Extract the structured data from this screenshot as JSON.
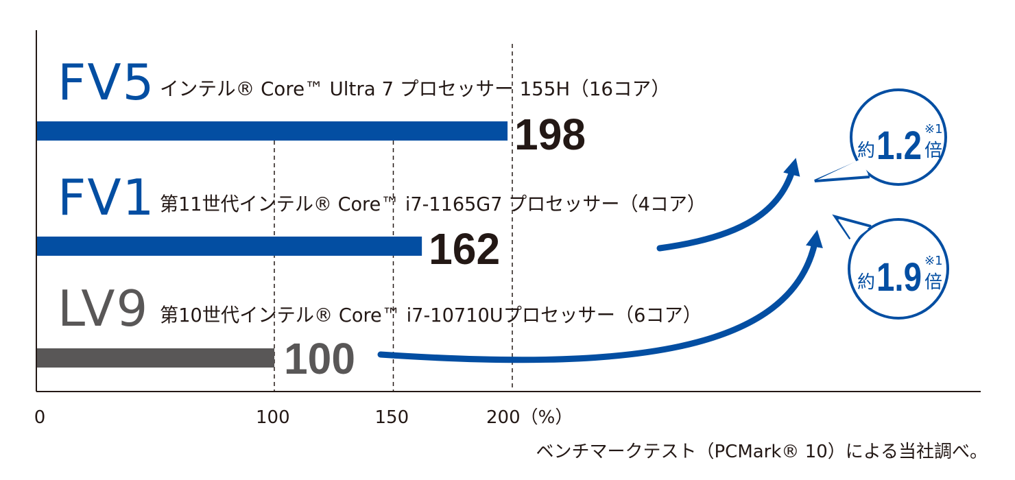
{
  "chart_data": {
    "type": "bar",
    "orientation": "horizontal",
    "categories": [
      "FV5",
      "FV1",
      "LV9"
    ],
    "values": [
      198,
      162,
      100
    ],
    "descriptions": [
      "インテル® Core™ Ultra 7 プロセッサー 155H（16コア）",
      "第11世代インテル® Core™ i7-1165G7 プロセッサー（4コア）",
      "第10世代インテル® Core™ i7-10710Uプロセッサー（6コア）"
    ],
    "value_labels": [
      "198",
      "162",
      "100"
    ],
    "bar_colors": [
      "#034ea2",
      "#034ea2",
      "#595757"
    ],
    "name_colors": [
      "#034ea2",
      "#034ea2",
      "#595757"
    ],
    "xlim": [
      0,
      240
    ],
    "xticks": [
      0,
      100,
      150,
      200
    ],
    "xtick_labels": [
      "0",
      "100",
      "150",
      "200（%）"
    ],
    "gridlines": [
      100,
      150,
      200
    ],
    "grid": "dashed vertical",
    "callouts": [
      {
        "prefix": "約",
        "value": "1.2",
        "note": "※1",
        "suffix": "倍",
        "from": "FV1",
        "to": "FV5"
      },
      {
        "prefix": "約",
        "value": "1.9",
        "note": "※1",
        "suffix": "倍",
        "from": "LV9",
        "to": "FV5"
      }
    ],
    "accent_color": "#034ea2",
    "source_note": "ベンチマークテスト（PCMark® 10）による当社調べ。"
  }
}
